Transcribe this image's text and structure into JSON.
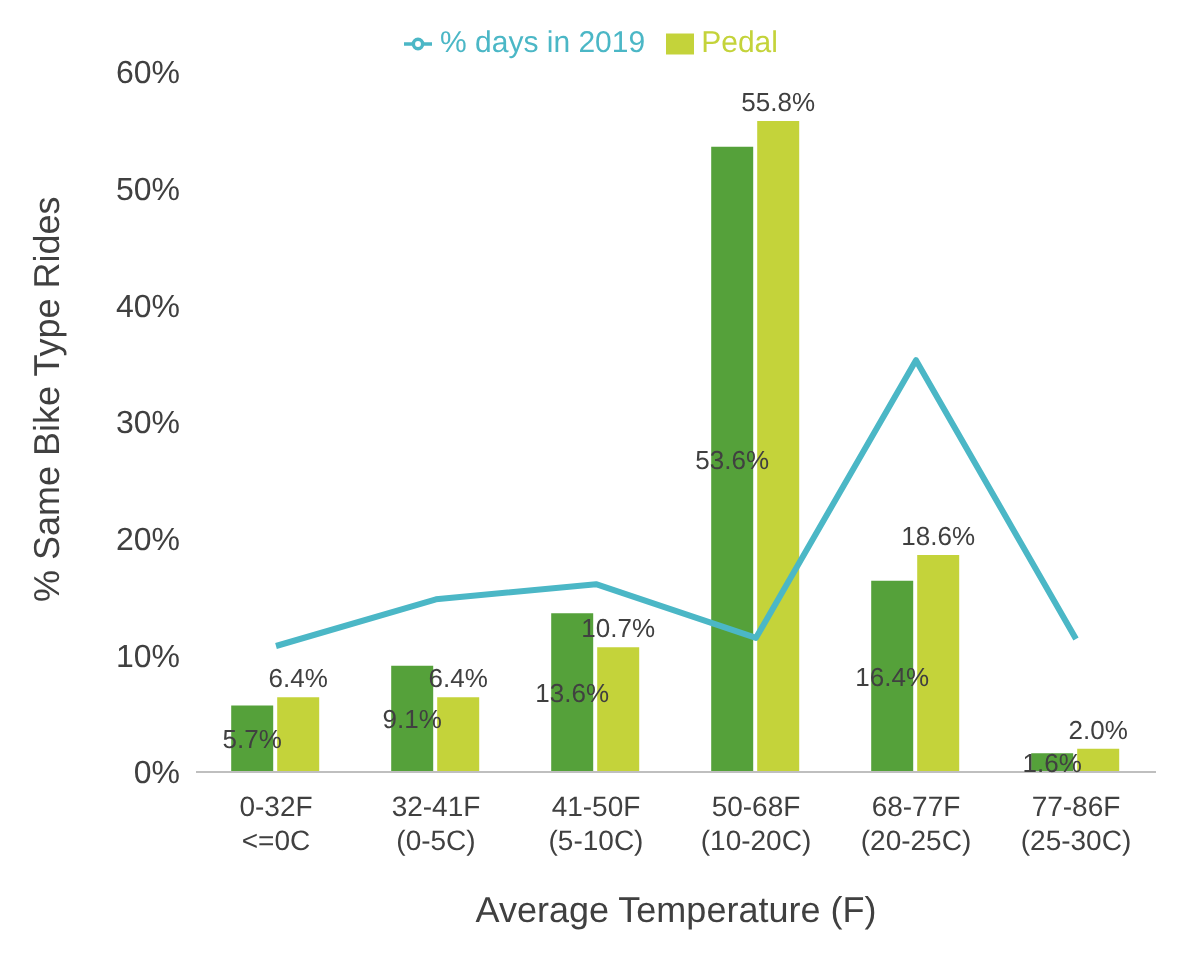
{
  "chart_data": {
    "type": "bar",
    "xlabel": "Average Temperature (F)",
    "ylabel": "% Same Bike Type Rides",
    "categories": [
      "0-32F\n<=0C",
      "32-41F\n(0-5C)",
      "41-50F\n(5-10C)",
      "50-68F\n(10-20C)",
      "68-77F\n(20-25C)",
      "77-86F\n(25-30C)"
    ],
    "series": [
      {
        "color": "#55a13a",
        "values": [
          5.7,
          9.1,
          13.6,
          53.6,
          16.4,
          1.6
        ],
        "value_labels": [
          "5.7%",
          "9.1%",
          "13.6%",
          "53.6%",
          "16.4%",
          "1.6%"
        ]
      },
      {
        "name": "Pedal",
        "color": "#c4d33a",
        "values": [
          6.4,
          6.4,
          10.7,
          55.8,
          18.6,
          2.0
        ],
        "value_labels": [
          "6.4%",
          "6.4%",
          "10.7%",
          "55.8%",
          "18.6%",
          "2.0%"
        ]
      },
      {
        "name": "% days in 2019",
        "type": "line",
        "color": "#4bb7c6",
        "values": [
          10.8,
          14.8,
          16.1,
          11.5,
          35.3,
          11.4
        ]
      }
    ],
    "ylim": [
      0,
      60
    ],
    "yticks": [
      {
        "value": 0,
        "label": "0%"
      },
      {
        "value": 10,
        "label": "10%"
      },
      {
        "value": 20,
        "label": "20%"
      },
      {
        "value": 30,
        "label": "30%"
      },
      {
        "value": 40,
        "label": "40%"
      },
      {
        "value": 50,
        "label": "50%"
      },
      {
        "value": 60,
        "label": "60%"
      }
    ],
    "legend": "top",
    "marker": "none"
  }
}
